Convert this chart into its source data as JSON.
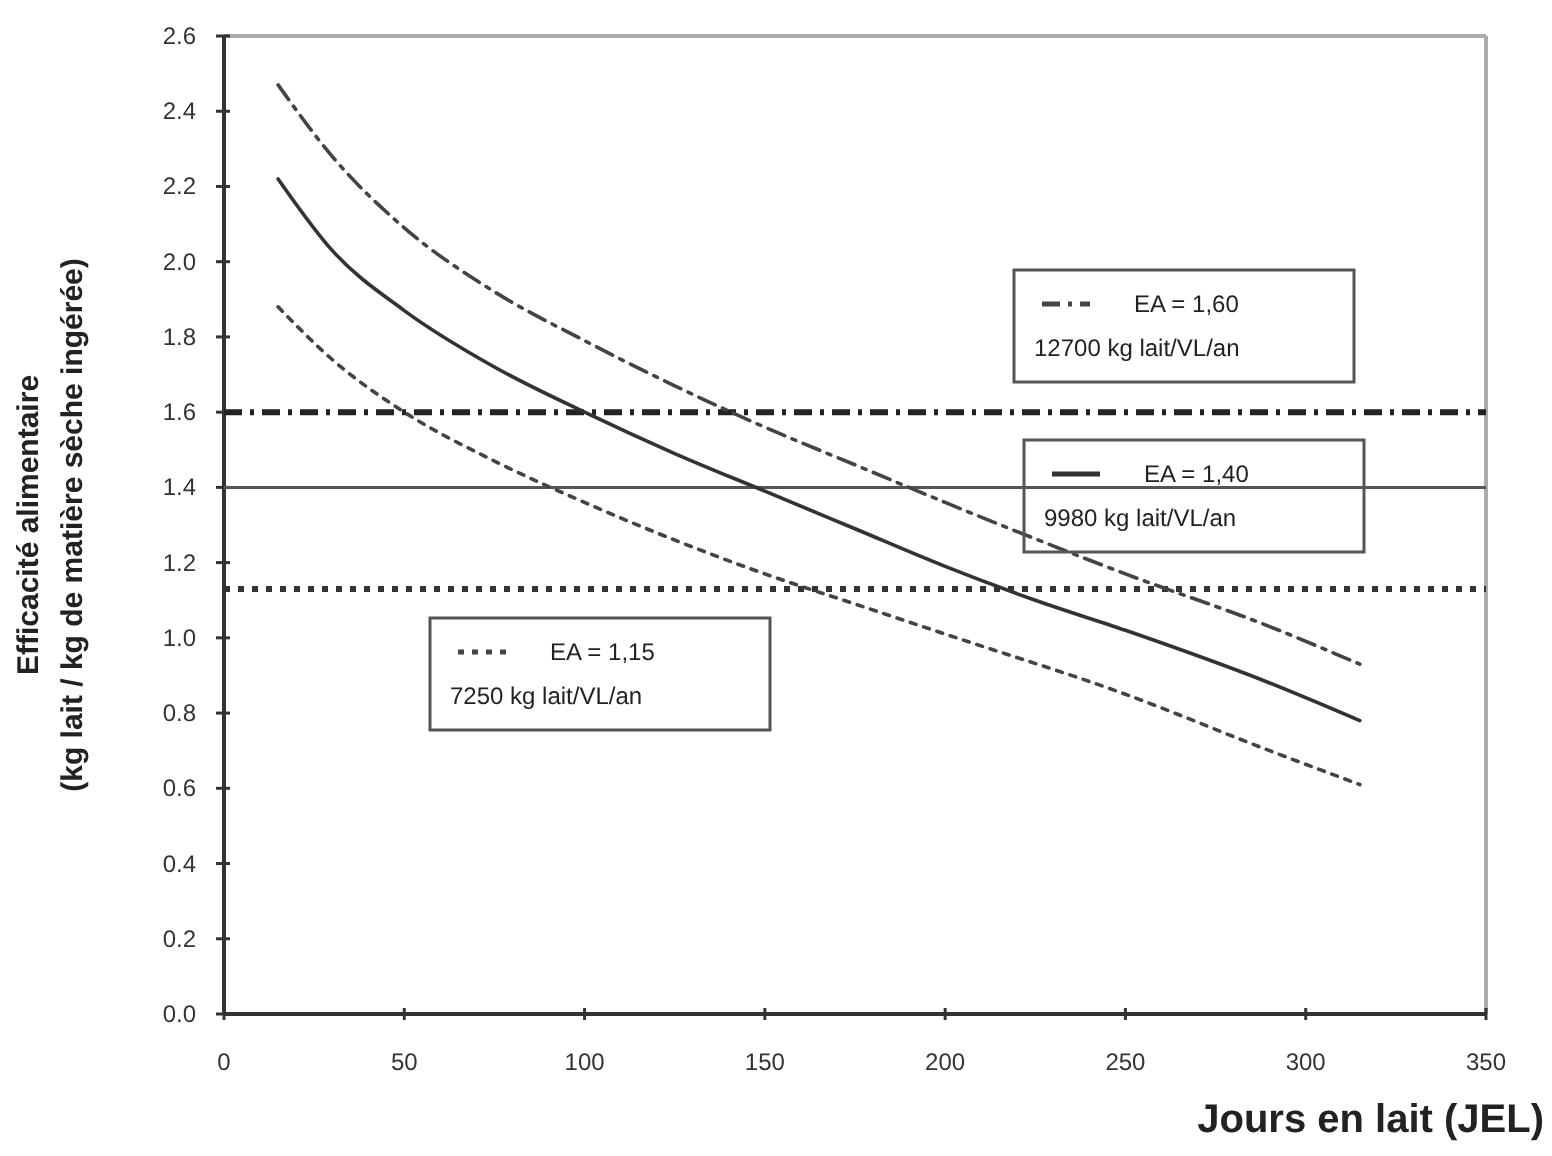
{
  "chart_data": {
    "type": "line",
    "xlabel": "Jours en lait (JEL)",
    "ylabel": "Efficacité alimentaire\n(kg lait / kg de matière sèche ingérée)",
    "xlim": [
      0,
      350
    ],
    "xticks": [
      0,
      50,
      100,
      150,
      200,
      250,
      300,
      350
    ],
    "ylim": [
      0,
      2.6
    ],
    "yticks": [
      {
        "value": 0,
        "label": "0.0"
      },
      {
        "value": 0.2,
        "label": "0.2"
      },
      {
        "value": 0.4,
        "label": "0.4"
      },
      {
        "value": 0.6,
        "label": "0.6"
      },
      {
        "value": 0.8,
        "label": "0.8"
      },
      {
        "value": 1,
        "label": "1.0"
      },
      {
        "value": 1.2,
        "label": "1.2"
      },
      {
        "value": 1.4,
        "label": "1.4"
      },
      {
        "value": 1.6,
        "label": "1.6"
      },
      {
        "value": 1.8,
        "label": "1.8"
      },
      {
        "value": 2,
        "label": "2.0"
      },
      {
        "value": 2.2,
        "label": "2.2"
      },
      {
        "value": 2.4,
        "label": "2.4"
      },
      {
        "value": 2.6,
        "label": "2.6"
      }
    ],
    "grid": false,
    "legend": "right",
    "marker": "none",
    "series": [
      {
        "name": "EA = 1,60",
        "color": "#444444",
        "line_style": "dashdot",
        "x": [
          15,
          30,
          50,
          75,
          100,
          125,
          150,
          175,
          200,
          250,
          290,
          315
        ],
        "values": [
          2.47,
          2.28,
          2.09,
          1.92,
          1.79,
          1.67,
          1.56,
          1.46,
          1.36,
          1.17,
          1.03,
          0.93
        ]
      },
      {
        "name": "EA = 1,40",
        "color": "#333333",
        "line_style": "solid",
        "x": [
          15,
          30,
          50,
          75,
          100,
          125,
          150,
          175,
          200,
          225,
          250,
          290,
          315
        ],
        "values": [
          2.22,
          2.03,
          1.87,
          1.72,
          1.6,
          1.49,
          1.39,
          1.29,
          1.19,
          1.1,
          1.02,
          0.88,
          0.78
        ]
      },
      {
        "name": "EA = 1,15",
        "color": "#444444",
        "line_style": "dotted",
        "x": [
          15,
          30,
          50,
          75,
          100,
          125,
          150,
          175,
          200,
          250,
          290,
          315
        ],
        "values": [
          1.88,
          1.74,
          1.6,
          1.47,
          1.36,
          1.26,
          1.17,
          1.09,
          1.01,
          0.85,
          0.7,
          0.61
        ]
      }
    ],
    "ref_lines": [
      {
        "axis": "y",
        "value": 1.6,
        "color": "#222222",
        "line_style": "dashdot"
      },
      {
        "axis": "y",
        "value": 1.4,
        "color": "#555555",
        "line_style": "solid"
      },
      {
        "axis": "y",
        "value": 1.13,
        "color": "#333333",
        "line_style": "dotted"
      }
    ],
    "annotations": [
      "12700 kg lait/VL/an",
      "9980 kg lait/VL/an",
      "7250 kg lait/VL/an"
    ]
  }
}
